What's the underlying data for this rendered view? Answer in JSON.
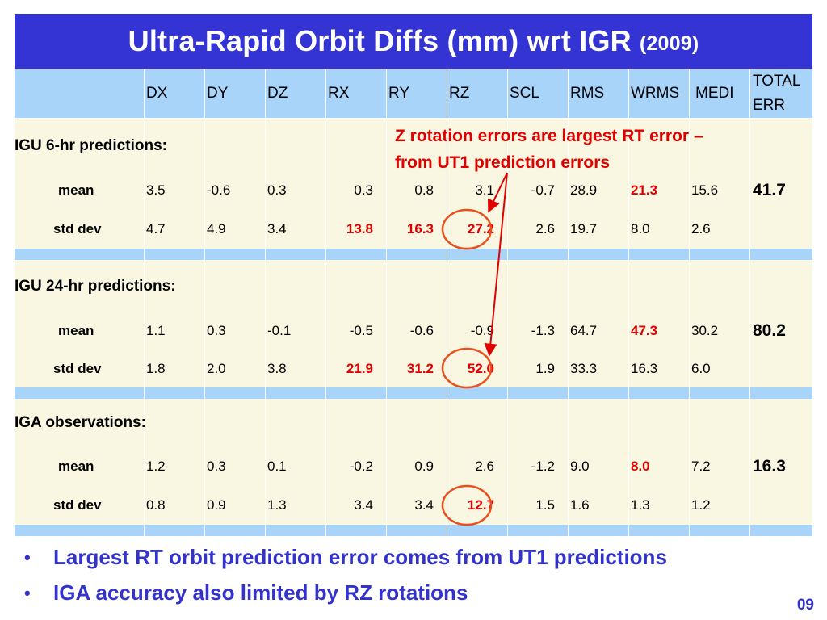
{
  "title": {
    "main": "Ultra-Rapid Orbit Diffs (mm) wrt IGR",
    "year": "(2009)"
  },
  "columns": [
    "DX",
    "DY",
    "DZ",
    "RX",
    "RY",
    "RZ",
    "SCL",
    "RMS",
    "WRMS",
    "MEDI",
    "TOTAL",
    "ERR"
  ],
  "annotation": {
    "line1": "Z rotation errors are largest RT error –",
    "line2": "from UT1 prediction errors"
  },
  "sections": [
    {
      "label": "IGU 6-hr predictions:",
      "rows": [
        {
          "label": "mean",
          "values": [
            "3.5",
            "-0.6",
            "0.3",
            "0.3",
            "0.8",
            "3.1",
            "-0.7",
            "28.9",
            "21.3",
            "15.6"
          ],
          "total": "41.7"
        },
        {
          "label": "std dev",
          "values": [
            "4.7",
            "4.9",
            "3.4",
            "13.8",
            "16.3",
            "27.2",
            "2.6",
            "19.7",
            "8.0",
            "2.6"
          ],
          "total": ""
        }
      ]
    },
    {
      "label": "IGU 24-hr predictions:",
      "rows": [
        {
          "label": "mean",
          "values": [
            "1.1",
            "0.3",
            "-0.1",
            "-0.5",
            "-0.6",
            "-0.9",
            "-1.3",
            "64.7",
            "47.3",
            "30.2"
          ],
          "total": "80.2"
        },
        {
          "label": "std dev",
          "values": [
            "1.8",
            "2.0",
            "3.8",
            "21.9",
            "31.2",
            "52.0",
            "1.9",
            "33.3",
            "16.3",
            "6.0"
          ],
          "total": ""
        }
      ]
    },
    {
      "label": "IGA observations:",
      "rows": [
        {
          "label": "mean",
          "values": [
            "1.2",
            "0.3",
            "0.1",
            "-0.2",
            "0.9",
            "2.6",
            "-1.2",
            "9.0",
            "8.0",
            "7.2"
          ],
          "total": "16.3"
        },
        {
          "label": "std dev",
          "values": [
            "0.8",
            "0.9",
            "1.3",
            "3.4",
            "3.4",
            "12.7",
            "1.5",
            "1.6",
            "1.3",
            "1.2"
          ],
          "total": ""
        }
      ]
    }
  ],
  "highlighted_red": [
    "0.0-8",
    "0.1-3",
    "0.1-4",
    "0.1-5",
    "1.0-8",
    "1.1-3",
    "1.1-4",
    "1.1-5",
    "2.0-8",
    "2.1-5"
  ],
  "bullets": [
    "Largest RT orbit prediction error comes from UT1 predictions",
    "IGA accuracy also limited by RZ rotations"
  ],
  "page_number": "09",
  "colors": {
    "title_bg": "#3434d4",
    "header_bg": "#a8d4fa",
    "row_bg": "#f9f7e2",
    "highlight_red": "#e10000",
    "circle": "#e8501f",
    "bullet_text": "#3333cc"
  }
}
